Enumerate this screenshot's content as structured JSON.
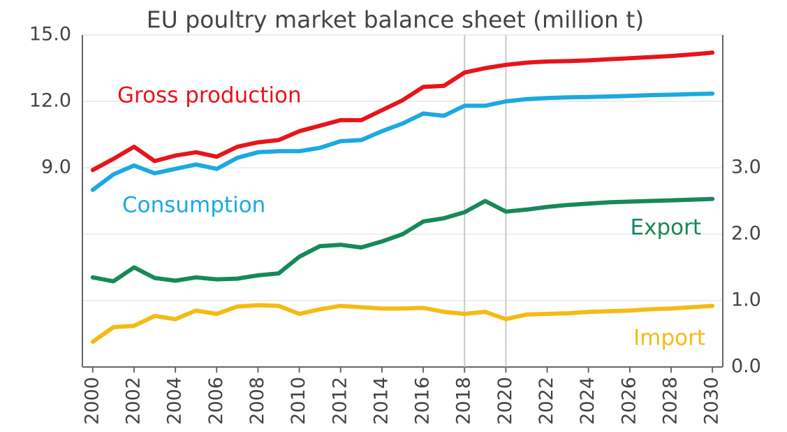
{
  "chart_data": {
    "type": "line",
    "title": "EU poultry market balance sheet (million t)",
    "x": [
      2000,
      2001,
      2002,
      2003,
      2004,
      2005,
      2006,
      2007,
      2008,
      2009,
      2010,
      2011,
      2012,
      2013,
      2014,
      2015,
      2016,
      2017,
      2018,
      2019,
      2020,
      2021,
      2022,
      2023,
      2024,
      2025,
      2026,
      2027,
      2028,
      2029,
      2030
    ],
    "xlim": [
      1999.5,
      2030.5
    ],
    "xticks": [
      2000,
      2002,
      2004,
      2006,
      2008,
      2010,
      2012,
      2014,
      2016,
      2018,
      2020,
      2022,
      2024,
      2026,
      2028,
      2030
    ],
    "vlines": [
      2018,
      2020
    ],
    "ylim": [
      0,
      15
    ],
    "yticks": [
      {
        "value": 9,
        "label": "9.0"
      },
      {
        "value": 12,
        "label": "12.0"
      },
      {
        "value": 15,
        "label": "15.0"
      }
    ],
    "y2lim": [
      0,
      5
    ],
    "y2ticks": [
      {
        "value": 0,
        "label": "0.0"
      },
      {
        "value": 1,
        "label": "1.0"
      },
      {
        "value": 2,
        "label": "2.0"
      },
      {
        "value": 3,
        "label": "3.0"
      }
    ],
    "grid": true,
    "series": [
      {
        "name": "Gross production",
        "color": "#e8141b",
        "values": [
          8.9,
          9.4,
          9.95,
          9.3,
          9.55,
          9.7,
          9.5,
          9.95,
          10.15,
          10.25,
          10.65,
          10.9,
          11.15,
          11.15,
          11.6,
          12.05,
          12.65,
          12.7,
          13.3,
          13.5,
          13.65,
          13.75,
          13.8,
          13.82,
          13.85,
          13.9,
          13.95,
          14.0,
          14.05,
          14.12,
          14.2
        ]
      },
      {
        "name": "Consumption",
        "color": "#1ba9e0",
        "values": [
          8.0,
          8.7,
          9.1,
          8.75,
          8.95,
          9.15,
          8.95,
          9.45,
          9.7,
          9.75,
          9.75,
          9.9,
          10.2,
          10.25,
          10.65,
          11.0,
          11.45,
          11.35,
          11.8,
          11.8,
          12.0,
          12.1,
          12.15,
          12.18,
          12.2,
          12.22,
          12.25,
          12.28,
          12.3,
          12.33,
          12.35
        ]
      },
      {
        "name": "Export",
        "color": "#17885a",
        "axis": "y2",
        "values": [
          1.35,
          1.29,
          1.5,
          1.34,
          1.3,
          1.35,
          1.32,
          1.33,
          1.38,
          1.41,
          1.66,
          1.82,
          1.84,
          1.8,
          1.89,
          2.0,
          2.19,
          2.24,
          2.33,
          2.5,
          2.34,
          2.37,
          2.41,
          2.44,
          2.46,
          2.48,
          2.49,
          2.5,
          2.51,
          2.52,
          2.53
        ]
      },
      {
        "name": "Import",
        "color": "#f5bb14",
        "axis": "y2",
        "values": [
          0.38,
          0.6,
          0.62,
          0.77,
          0.72,
          0.85,
          0.8,
          0.91,
          0.93,
          0.92,
          0.8,
          0.87,
          0.92,
          0.9,
          0.88,
          0.88,
          0.89,
          0.83,
          0.8,
          0.83,
          0.72,
          0.79,
          0.8,
          0.81,
          0.83,
          0.84,
          0.85,
          0.87,
          0.88,
          0.9,
          0.92
        ]
      }
    ]
  }
}
